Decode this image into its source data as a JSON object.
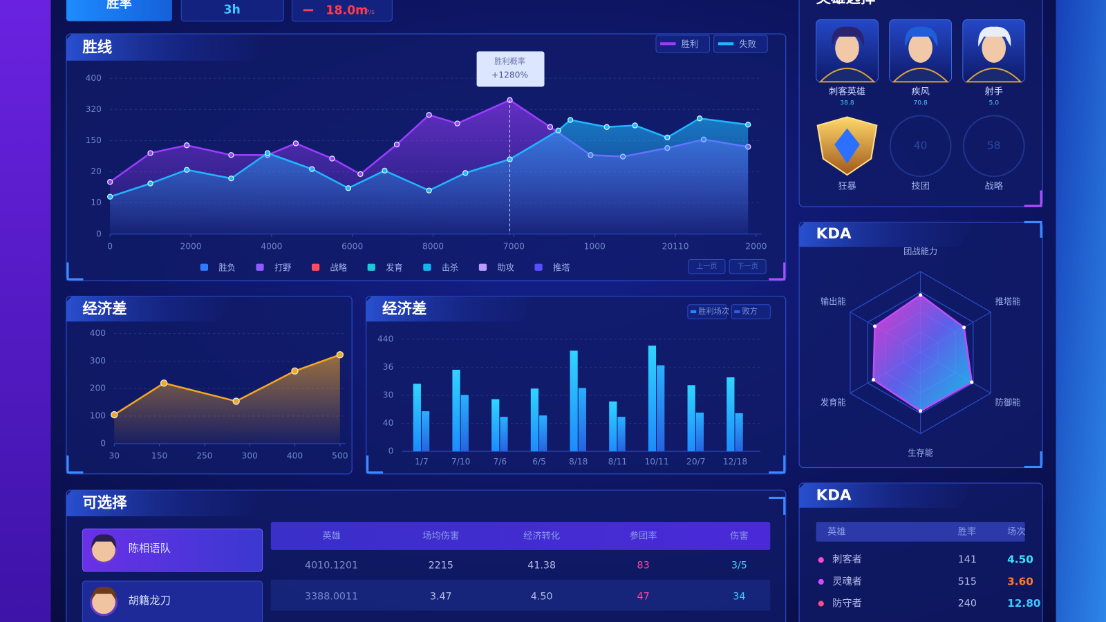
{
  "header": {
    "tabs": [
      "胜率",
      "3h",
      "18.0m"
    ],
    "unit": "P/s"
  },
  "heroes": {
    "title": "英雄选择",
    "items": [
      {
        "name": "刺客英雄",
        "stat": "38.8"
      },
      {
        "name": "疾风",
        "stat": "70.8"
      },
      {
        "name": "射手",
        "stat": "5.0"
      }
    ],
    "badges": [
      {
        "name": "狂暴"
      },
      {
        "name": "技团",
        "value": "40"
      },
      {
        "name": "战略",
        "value": "58"
      }
    ]
  },
  "chart_data": [
    {
      "type": "line",
      "title": "胜线",
      "xlim": [
        0,
        16
      ],
      "xticks": [
        0,
        {
          "value": 2,
          "label": "2000"
        },
        {
          "value": 4,
          "label": "4000"
        },
        {
          "value": 6,
          "label": "6000"
        },
        {
          "value": 8,
          "label": "8000"
        },
        {
          "value": 10,
          "label": "7000"
        },
        {
          "value": 12,
          "label": "1000"
        },
        {
          "value": 14,
          "label": "20110"
        },
        {
          "value": 16,
          "label": "2000"
        }
      ],
      "ylim": [
        0,
        400
      ],
      "yticks": [
        0,
        {
          "value": 80,
          "label": "10"
        },
        {
          "value": 160,
          "label": "20"
        },
        {
          "value": 240,
          "label": "150"
        },
        320,
        400
      ],
      "grid": true,
      "legend": "top-right",
      "series": [
        {
          "name": "胜利",
          "color": "#9b3cff",
          "x": [
            0,
            1,
            1.9,
            3,
            3.9,
            4.6,
            5.5,
            6.2,
            7.1,
            7.9,
            8.6,
            9.9,
            10.9,
            11.9,
            12.7,
            13.8,
            14.7,
            15.8
          ],
          "values": [
            134,
            208,
            228,
            203,
            203,
            233,
            194,
            154,
            230,
            306,
            284,
            344,
            275,
            203,
            199,
            221,
            243,
            224
          ]
        },
        {
          "name": "失败",
          "color": "#1fb6ff",
          "x": [
            0,
            1,
            1.9,
            3,
            3.9,
            5,
            5.9,
            6.8,
            7.9,
            8.8,
            9.9,
            11.1,
            11.4,
            12.3,
            13,
            13.8,
            14.6,
            15.8
          ],
          "values": [
            96,
            130,
            165,
            143,
            208,
            167,
            118,
            163,
            112,
            157,
            192,
            266,
            293,
            275,
            279,
            248,
            297,
            281
          ]
        }
      ],
      "legend_items": [
        {
          "name": "胜负",
          "color": "#2f7bff"
        },
        {
          "name": "打野",
          "color": "#8a5cff"
        },
        {
          "name": "战略",
          "color": "#ff4d5e"
        },
        {
          "name": "发育",
          "color": "#1fc8d8"
        },
        {
          "name": "击杀",
          "color": "#14b4f0"
        },
        {
          "name": "助攻",
          "color": "#b89cff"
        },
        {
          "name": "推塔",
          "color": "#5a4dff"
        }
      ],
      "annotation": {
        "title": "胜利概率",
        "text": "+1280%"
      },
      "pager": [
        "上一页",
        "下一页"
      ]
    },
    {
      "type": "area",
      "title": "经济差",
      "xlim": [
        0,
        5
      ],
      "xticks": [
        {
          "value": 0,
          "label": "30"
        },
        {
          "value": 1,
          "label": "150"
        },
        {
          "value": 2,
          "label": "250"
        },
        {
          "value": 3,
          "label": "300"
        },
        {
          "value": 4,
          "label": "400"
        },
        {
          "value": 5,
          "label": "500"
        }
      ],
      "ylim": [
        0,
        400
      ],
      "yticks": [
        0,
        100,
        200,
        300,
        400
      ],
      "grid": true,
      "x": [
        0,
        1.1,
        2.7,
        4,
        5
      ],
      "values": [
        105,
        220,
        154,
        264,
        323
      ],
      "color": "#f5a623"
    },
    {
      "type": "bar",
      "title": "经济差",
      "categories": [
        "1/7",
        "7/10",
        "7/6",
        "6/5",
        "8/18",
        "8/11",
        "10/11",
        "20/7",
        "12/18"
      ],
      "ylim": [
        0,
        40
      ],
      "yticks": [
        0,
        {
          "value": 10,
          "label": "40"
        },
        {
          "value": 20,
          "label": "30"
        },
        {
          "value": 30,
          "label": "36"
        },
        {
          "value": 40,
          "label": "440"
        }
      ],
      "grid": true,
      "legend": "top-right",
      "series": [
        {
          "name": "胜利场次",
          "color": "#1d8bff",
          "values": [
            24.1,
            29.1,
            18.6,
            22.4,
            35.9,
            17.8,
            37.7,
            23.6,
            26.4
          ]
        },
        {
          "name": "败方",
          "color": "#2563e0",
          "values": [
            14.3,
            20.1,
            12.3,
            12.8,
            22.6,
            12.3,
            30.7,
            13.8,
            13.6
          ]
        }
      ]
    },
    {
      "type": "radar",
      "title": "KDA",
      "indicators": [
        "团战能力",
        "推塔能",
        "防御能",
        "生存能",
        "发育能",
        "输出能"
      ],
      "rlim": [
        0,
        100
      ],
      "values": [
        71,
        62,
        73,
        72,
        67,
        65
      ],
      "color": "#c04cff"
    }
  ],
  "table": {
    "title": "可选择",
    "columns": [
      "英雄",
      "场均伤害",
      "经济转化",
      "参团率",
      "伤害"
    ],
    "players": [
      "陈相语队",
      "胡籍龙刀"
    ],
    "rows": [
      [
        "4010.1201",
        "2215",
        "41.38",
        "83",
        "3/5"
      ],
      [
        "3388.0011",
        "3.47",
        "4.50",
        "47",
        "34"
      ]
    ]
  },
  "kda_list": {
    "title": "KDA",
    "columns": [
      "英雄",
      "胜率",
      "场次"
    ],
    "rows": [
      [
        "刺客者",
        "141",
        "4.50"
      ],
      [
        "灵魂者",
        "515",
        "3.60"
      ],
      [
        "防守者",
        "240",
        "12.80"
      ]
    ]
  }
}
